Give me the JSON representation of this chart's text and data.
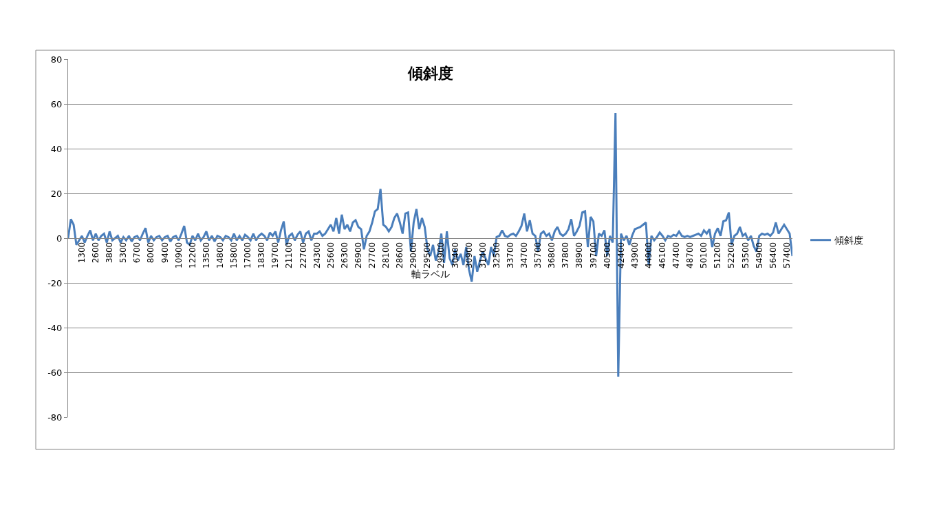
{
  "chart_data": {
    "type": "line",
    "title": "傾斜度",
    "xlabel": "軸ラベル",
    "categories": [
      null,
      null,
      null,
      null,
      null,
      "1300",
      null,
      null,
      null,
      null,
      "2600",
      null,
      null,
      null,
      null,
      "3800",
      null,
      null,
      null,
      null,
      "5300",
      null,
      null,
      null,
      null,
      "6700",
      null,
      null,
      null,
      null,
      "8000",
      null,
      null,
      null,
      null,
      "9400",
      null,
      null,
      null,
      null,
      "10900",
      null,
      null,
      null,
      null,
      "12200",
      null,
      null,
      null,
      null,
      "13500",
      null,
      null,
      null,
      null,
      "14800",
      null,
      null,
      null,
      null,
      "15800",
      null,
      null,
      null,
      null,
      "17000",
      null,
      null,
      null,
      null,
      "18300",
      null,
      null,
      null,
      null,
      "19700",
      null,
      null,
      null,
      null,
      "21100",
      null,
      null,
      null,
      null,
      "22700",
      null,
      null,
      null,
      null,
      "24300",
      null,
      null,
      null,
      null,
      "25600",
      null,
      null,
      null,
      null,
      "26300",
      null,
      null,
      null,
      null,
      "26900",
      null,
      null,
      null,
      null,
      "27700",
      null,
      null,
      null,
      null,
      "28100",
      null,
      null,
      null,
      null,
      "28600",
      null,
      null,
      null,
      null,
      "29000",
      null,
      null,
      null,
      null,
      "29500",
      null,
      null,
      null,
      null,
      "29900",
      null,
      null,
      null,
      null,
      "30400",
      null,
      null,
      null,
      null,
      "30900",
      null,
      null,
      null,
      null,
      "31400",
      null,
      null,
      null,
      null,
      "32500",
      null,
      null,
      null,
      null,
      "33700",
      null,
      null,
      null,
      null,
      "34700",
      null,
      null,
      null,
      null,
      "35700",
      null,
      null,
      null,
      null,
      "36800",
      null,
      null,
      null,
      null,
      "37800",
      null,
      null,
      null,
      null,
      "38900",
      null,
      null,
      null,
      null,
      "39700",
      null,
      null,
      null,
      null,
      "40500",
      null,
      null,
      null,
      null,
      "42400",
      null,
      null,
      null,
      null,
      "43900",
      null,
      null,
      null,
      null,
      "44900",
      null,
      null,
      null,
      null,
      "46100",
      null,
      null,
      null,
      null,
      "47400",
      null,
      null,
      null,
      null,
      "48700",
      null,
      null,
      null,
      null,
      "50100",
      null,
      null,
      null,
      null,
      "51200",
      null,
      null,
      null,
      null,
      "52200",
      null,
      null,
      null,
      null,
      "53500",
      null,
      null,
      null,
      null,
      "54900",
      null,
      null,
      null,
      null,
      "56400",
      null,
      null,
      null,
      null,
      "57400",
      null,
      null
    ],
    "series": [
      {
        "name": "傾斜度",
        "color": "#4a7ebb",
        "values": [
          0,
          8.5,
          6,
          -3,
          -1,
          1,
          -2,
          1,
          3.5,
          -1,
          2,
          -1,
          1,
          2,
          -2,
          3,
          -1,
          0,
          1,
          -2,
          0.5,
          -1,
          1,
          -1.5,
          0.5,
          1,
          -1,
          2,
          4.5,
          -2,
          1,
          -1,
          0.5,
          1,
          -1,
          0.5,
          1,
          -1.5,
          0.5,
          1,
          -1,
          2,
          5.5,
          -2,
          -3,
          1,
          -1,
          2,
          -1,
          0.5,
          3,
          -1,
          1,
          -1.5,
          1,
          0.5,
          -1,
          1,
          0.5,
          -1,
          2,
          -1,
          1,
          -1,
          1.5,
          0.5,
          -1,
          2,
          -1,
          1,
          2,
          1,
          -1,
          2.5,
          1,
          3,
          -2,
          3.5,
          7.5,
          -3,
          1,
          2,
          -1,
          1.5,
          3,
          -2,
          2,
          3,
          -1,
          2,
          2,
          3,
          1,
          2,
          4,
          6,
          3,
          9,
          2,
          10.5,
          4,
          6,
          3,
          7,
          8,
          5,
          4,
          -5,
          1,
          3,
          7,
          12,
          13,
          22,
          6,
          5,
          3,
          5,
          9,
          11,
          7,
          2,
          11,
          11.5,
          -6,
          7,
          13,
          4,
          9,
          5,
          -5,
          -8,
          -3,
          -10,
          -6,
          2,
          -11,
          3,
          -9,
          -12,
          -5,
          -10,
          -7,
          -12,
          -4,
          -14,
          -19.5,
          -8,
          -15,
          -10,
          -6,
          -9,
          -12,
          -4,
          -8,
          0.5,
          1,
          3.5,
          1,
          0.5,
          1.5,
          2,
          1,
          3,
          5.5,
          11,
          3,
          8,
          2,
          1,
          -6,
          2,
          3,
          1,
          2,
          -1,
          3,
          5,
          2,
          1,
          2,
          4,
          8.5,
          1,
          3,
          5.5,
          11.5,
          12,
          -4,
          9.5,
          7.5,
          -8,
          2,
          1,
          3.5,
          -8,
          1,
          -2,
          56,
          -62,
          2,
          -1,
          1,
          -3,
          1,
          4,
          4.5,
          5,
          6,
          7,
          -12,
          1,
          -1,
          0.5,
          2.5,
          1,
          -1,
          1,
          0.5,
          1.5,
          1,
          3,
          1,
          0.5,
          1,
          0.5,
          1,
          1.5,
          2,
          1,
          3.5,
          2,
          4,
          -4,
          2,
          4.5,
          1,
          7.5,
          8,
          11.5,
          -3,
          1,
          2,
          5,
          1,
          2,
          -1,
          1,
          -3.5,
          -6,
          1,
          2,
          1.5,
          2,
          1,
          2.5,
          7,
          2,
          4,
          6,
          4,
          2,
          -8
        ]
      }
    ],
    "ylim": [
      -80,
      80
    ],
    "yticks": [
      -80,
      -60,
      -40,
      -20,
      0,
      20,
      40,
      60,
      80
    ],
    "grid": "y",
    "legend": "right",
    "marker": "none",
    "line_style": "solid"
  }
}
